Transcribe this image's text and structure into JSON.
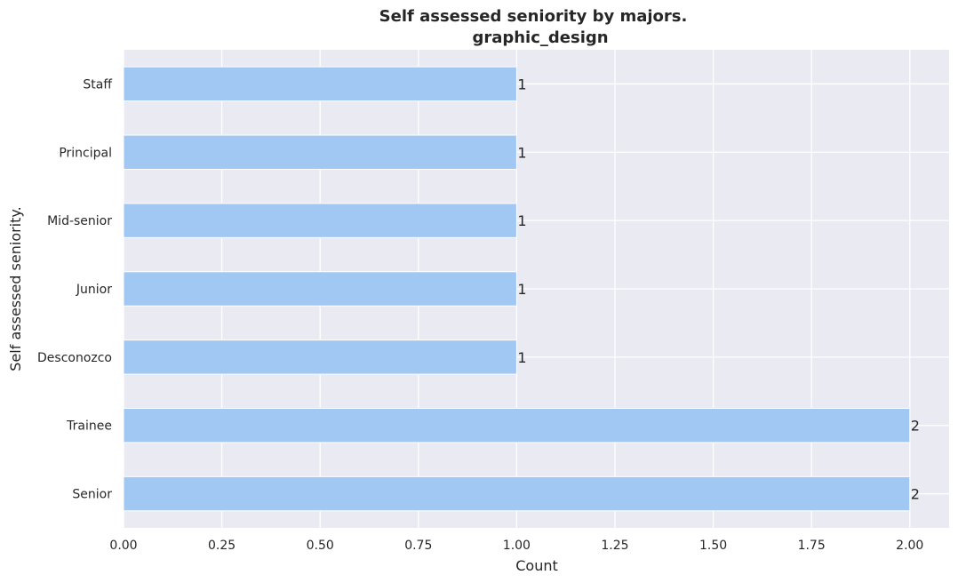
{
  "chart_data": {
    "type": "bar",
    "orientation": "horizontal",
    "title": "Self assessed seniority by majors.",
    "subtitle": "graphic_design",
    "xlabel": "Count",
    "ylabel": "Self assessed seniority.",
    "categories": [
      "Staff",
      "Principal",
      "Mid-senior",
      "Junior",
      "Desconozco",
      "Trainee",
      "Senior"
    ],
    "values": [
      1,
      1,
      1,
      1,
      1,
      2,
      2
    ],
    "data_labels": [
      "1",
      "1",
      "1",
      "1",
      "1",
      "2",
      "2"
    ],
    "xlim": [
      0,
      2.1
    ],
    "xticks": [
      0,
      0.25,
      0.5,
      0.75,
      1,
      1.25,
      1.5,
      1.75,
      2
    ],
    "xtick_labels": [
      "0.00",
      "0.25",
      "0.50",
      "0.75",
      "1.00",
      "1.25",
      "1.50",
      "1.75",
      "2.00"
    ],
    "grid": true,
    "colors": {
      "bar": "#a1c8f3",
      "plot_background": "#eaeaf2",
      "grid": "#ffffff",
      "text": "#262626"
    }
  }
}
